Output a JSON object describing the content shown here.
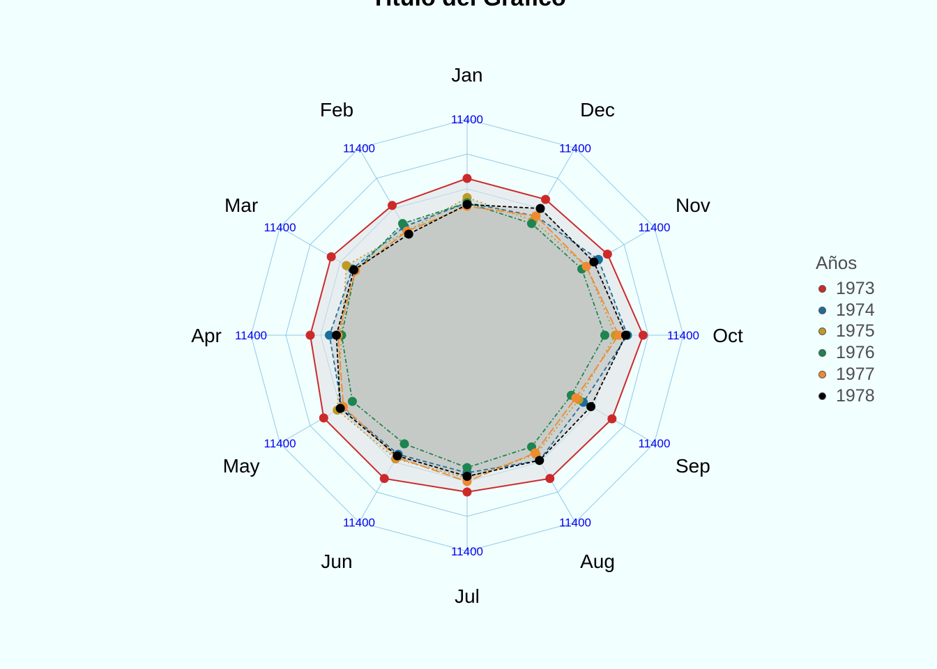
{
  "chart_data": {
    "type": "radar",
    "title": "Título del Gráfico",
    "categories": [
      "Jan",
      "Feb",
      "Mar",
      "Apr",
      "May",
      "Jun",
      "Jul",
      "Aug",
      "Sep",
      "Oct",
      "Nov",
      "Dec"
    ],
    "grid_label": "11400",
    "legend_title": "Años",
    "legend_position": "right",
    "scale_max": 1.0,
    "grid_levels": 5,
    "series": [
      {
        "name": "1973",
        "color": "#cc2a2a",
        "values": [
          0.66,
          0.62,
          0.66,
          0.66,
          0.71,
          0.71,
          0.66,
          0.71,
          0.72,
          0.77,
          0.69,
          0.66
        ]
      },
      {
        "name": "1974",
        "color": "#1a6e9a",
        "values": [
          0.52,
          0.48,
          0.52,
          0.55,
          0.59,
          0.55,
          0.55,
          0.59,
          0.53,
          0.68,
          0.63,
          0.55
        ]
      },
      {
        "name": "1975",
        "color": "#c09a25",
        "values": [
          0.55,
          0.45,
          0.56,
          0.48,
          0.62,
          0.58,
          0.58,
          0.55,
          0.5,
          0.61,
          0.55,
          0.52
        ]
      },
      {
        "name": "1976",
        "color": "#1e8450",
        "values": [
          0.52,
          0.5,
          0.5,
          0.48,
          0.52,
          0.48,
          0.52,
          0.5,
          0.45,
          0.55,
          0.52,
          0.5
        ]
      },
      {
        "name": "1977",
        "color": "#ef8a30",
        "values": [
          0.5,
          0.45,
          0.5,
          0.5,
          0.58,
          0.57,
          0.6,
          0.54,
          0.48,
          0.63,
          0.55,
          0.55
        ]
      },
      {
        "name": "1978",
        "color": "#000000",
        "values": [
          0.51,
          0.43,
          0.51,
          0.51,
          0.6,
          0.56,
          0.57,
          0.59,
          0.58,
          0.67,
          0.6,
          0.6
        ]
      }
    ]
  }
}
